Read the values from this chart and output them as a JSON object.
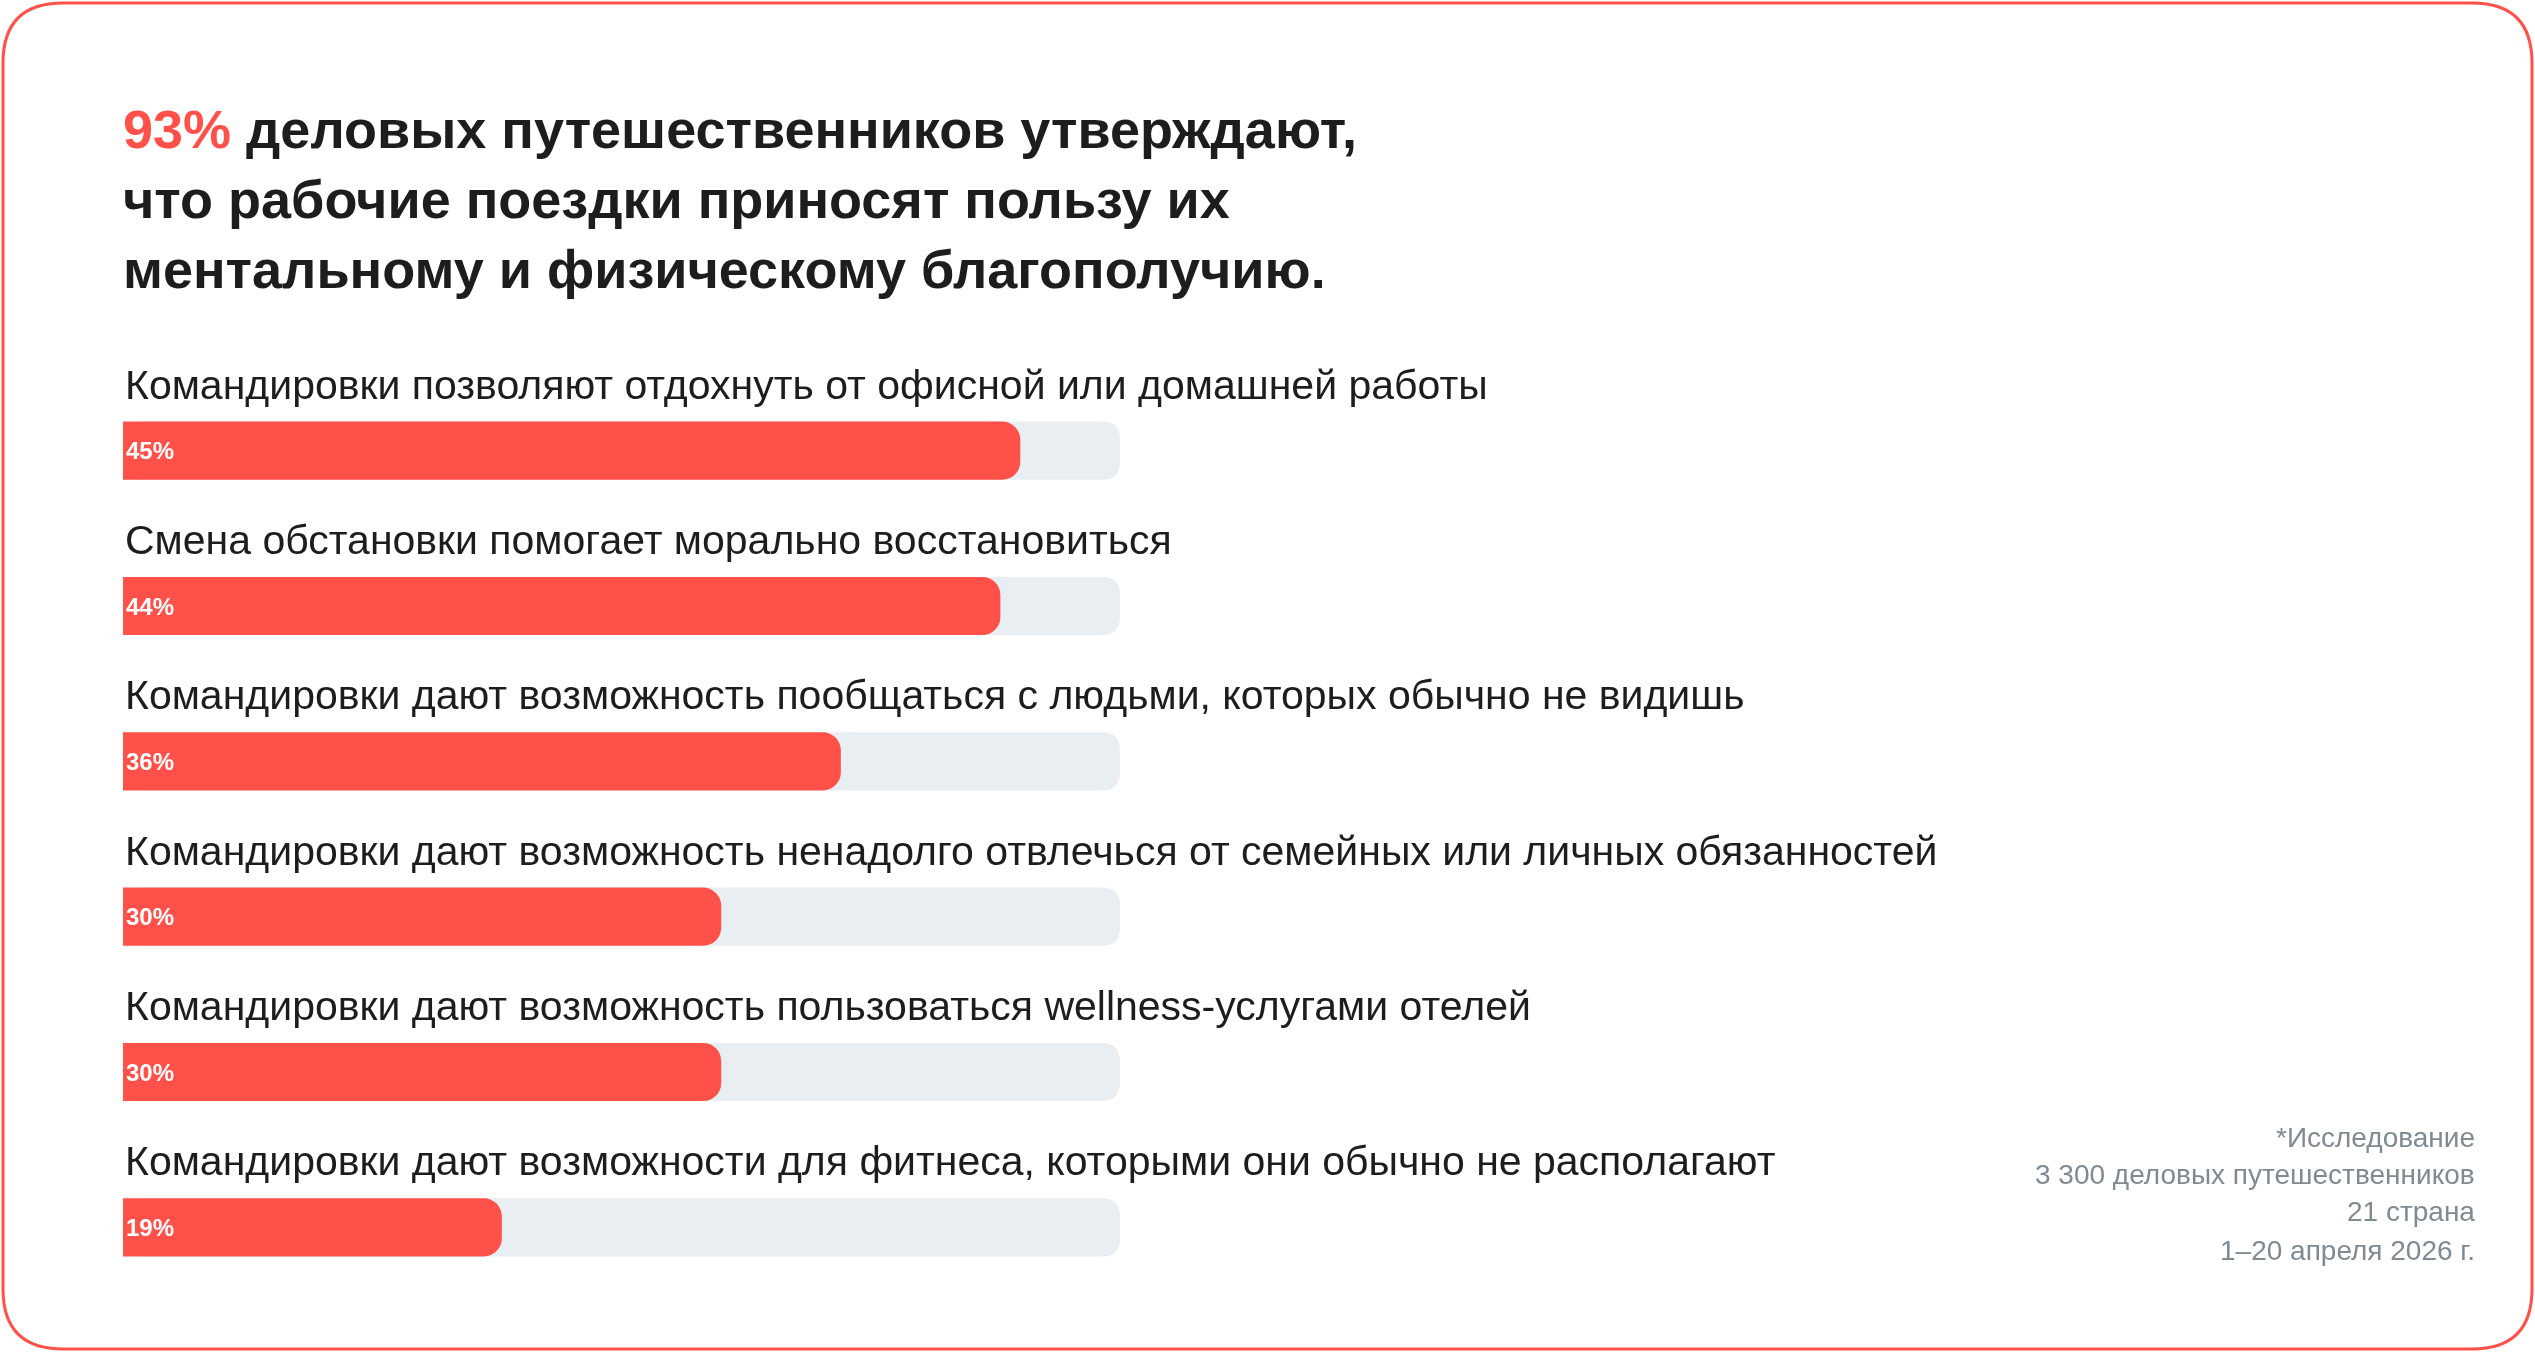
{
  "chart_data": {
    "type": "bar",
    "orientation": "horizontal",
    "title": "93% деловых путешественников утверждают, что рабочие поездки приносят пользу их ментальному и физическому благополучию.",
    "categories": [
      "Командировки позволяют отдохнуть от офисной или домашней работы",
      "Смена обстановки помогает морально восстановиться",
      "Командировки дают возможность пообщаться с людьми, которых обычно не видишь",
      "Командировки дают возможность ненадолго отвлечься от семейных или личных обязанностей",
      "Командировки дают возможность пользоваться wellness-услугами отелей",
      "Командировки дают возможности для фитнеса, которыми они обычно не располагают"
    ],
    "values": [
      45,
      44,
      36,
      30,
      30,
      19
    ],
    "value_labels": [
      "45%",
      "44%",
      "36%",
      "30%",
      "30%",
      "19%"
    ],
    "color": "#ff5149",
    "xlim": [
      0,
      50
    ],
    "tick_labels": "y",
    "annotations": [
      "*Исследование",
      "3 300 деловых путешественников",
      "21 страна",
      "1–20 апреля 2026 г."
    ]
  }
}
